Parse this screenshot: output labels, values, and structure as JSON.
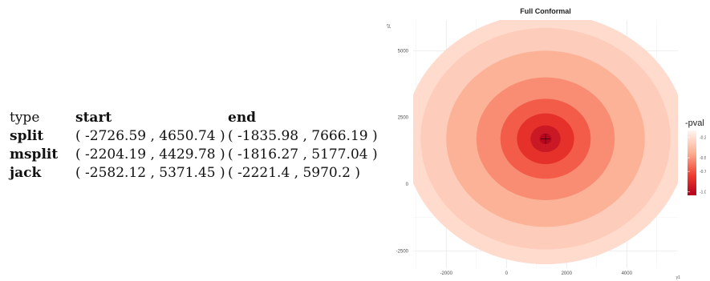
{
  "table": {
    "headers": [
      "type",
      "start",
      "end"
    ],
    "rows": [
      {
        "label": "split",
        "start": "( -2726.59 , 4650.74 )",
        "end": "( -1835.98 , 7666.19 )"
      },
      {
        "label": "msplit",
        "start": "( -2204.19 , 4429.78 )",
        "end": "( -1816.27 , 5177.04 )"
      },
      {
        "label": "jack",
        "start": "( -2582.12 , 5371.45 )",
        "end": "( -2221.4 , 5970.2 )"
      }
    ]
  },
  "chart_data": {
    "type": "heatmap",
    "title": "Full Conformal",
    "xlabel": "y1",
    "ylabel": "y2",
    "xlim": [
      -3100,
      5700
    ],
    "ylim": [
      -3150,
      6150
    ],
    "x_ticks": [
      -2000,
      0,
      2000,
      4000
    ],
    "y_ticks": [
      -2500,
      0,
      2500,
      5000
    ],
    "grid": true,
    "legend": {
      "title": "-pval",
      "placement": "right",
      "values": [
        -0.2,
        -0.5,
        -0.7,
        -1.0
      ],
      "labels": [
        "-0.2",
        "-0.5",
        "-0.7",
        "-1.0"
      ],
      "low_color": "#fff5f0",
      "high_color": "#b2001e"
    },
    "surface": {
      "center": [
        1300,
        1700
      ],
      "support_radius": 4700,
      "rings": [
        {
          "radius": 4700,
          "value": -0.13
        },
        {
          "radius": 4150,
          "value": -0.2
        },
        {
          "radius": 3300,
          "value": -0.33
        },
        {
          "radius": 2300,
          "value": -0.45
        },
        {
          "radius": 1500,
          "value": -0.6
        },
        {
          "radius": 950,
          "value": -0.75
        },
        {
          "radius": 500,
          "value": -0.88
        },
        {
          "radius": 200,
          "value": -0.97
        }
      ]
    },
    "marker": {
      "x": 1300,
      "y": 1700,
      "symbol": "+"
    }
  }
}
